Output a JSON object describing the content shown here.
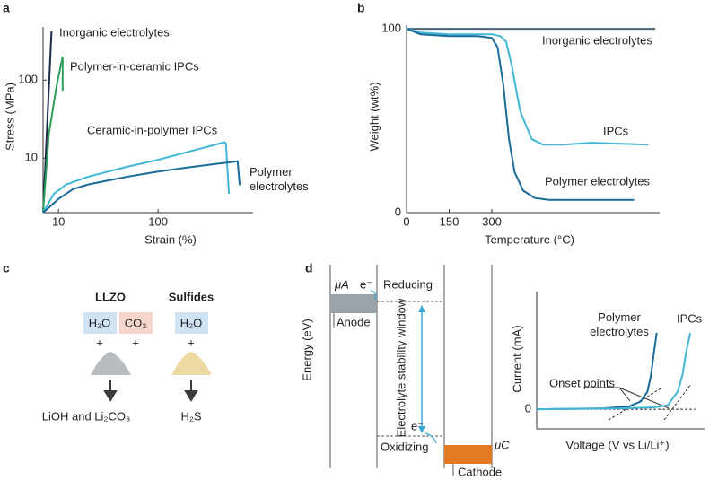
{
  "panel_labels": [
    "a",
    "b",
    "c",
    "d"
  ],
  "chart_data": [
    {
      "type": "line",
      "xlabel": "Strain (%)",
      "ylabel": "Stress (MPa)",
      "log_scale": true,
      "xlim": [
        7,
        900
      ],
      "ylim": [
        2,
        480
      ],
      "xticks": [
        10,
        100
      ],
      "yticks": [
        10,
        100
      ],
      "series": [
        {
          "name": "Inorganic electrolytes",
          "color": "#1c2b4c",
          "x": [
            7,
            8.5
          ],
          "values": [
            2,
            420
          ]
        },
        {
          "name": "Polymer-in-ceramic IPCs",
          "color": "#2e9e5b",
          "x": [
            7,
            8,
            9.5,
            10.5,
            11,
            11
          ],
          "values": [
            2,
            20,
            80,
            150,
            200,
            73
          ]
        },
        {
          "name": "Ceramic-in-polymer IPCs",
          "color": "#41b6d6",
          "x": [
            7,
            9,
            12,
            20,
            50,
            100,
            200,
            465,
            480,
            515
          ],
          "values": [
            2,
            3.5,
            4.6,
            5.8,
            7.8,
            9.5,
            12,
            16,
            15.5,
            3.5
          ]
        },
        {
          "name": "Polymer electrolytes",
          "color": "#1a6a9a",
          "x": [
            7,
            10,
            14,
            20,
            50,
            100,
            200,
            400,
            630,
            660
          ],
          "values": [
            2,
            3,
            4,
            4.6,
            5.8,
            6.7,
            7.6,
            8.5,
            9.1,
            4.5
          ]
        }
      ]
    },
    {
      "type": "line",
      "xlabel": "Temperature (°C)",
      "ylabel": "Weight (wt%)",
      "xlim": [
        0,
        890
      ],
      "ylim": [
        0,
        102
      ],
      "xticks": [
        0,
        150,
        300
      ],
      "yticks": [
        0,
        100
      ],
      "series": [
        {
          "name": "Inorganic electrolytes",
          "color": "#4a6074",
          "x": [
            0,
            875
          ],
          "values": [
            100,
            100
          ]
        },
        {
          "name": "IPCs",
          "color": "#41b6d6",
          "x": [
            0,
            50,
            150,
            300,
            330,
            350,
            370,
            400,
            440,
            480,
            550,
            650,
            850
          ],
          "values": [
            100,
            98,
            97,
            97,
            96,
            93,
            80,
            55,
            40,
            37,
            37,
            38,
            37
          ]
        },
        {
          "name": "Polymer electrolytes",
          "color": "#1a6a9a",
          "x": [
            0,
            50,
            150,
            250,
            300,
            320,
            340,
            360,
            380,
            410,
            450,
            500,
            600,
            800
          ],
          "values": [
            100,
            97,
            96,
            96,
            95,
            90,
            70,
            40,
            22,
            12,
            8,
            7,
            7,
            7
          ]
        }
      ]
    },
    {
      "type": "line",
      "xlabel": "Voltage (V vs Li/Li⁺)",
      "ylabel": "Current (mA)",
      "annotation": "Onset points",
      "xlim": [
        0,
        100
      ],
      "ylim": [
        -1,
        6
      ],
      "yticks": [
        0
      ],
      "series": [
        {
          "name": "Polymer electrolytes",
          "color": "#1a6a9a",
          "x": [
            0,
            40,
            55,
            62,
            66,
            68,
            70,
            71.5
          ],
          "values": [
            0,
            0.05,
            0.15,
            0.4,
            0.9,
            1.7,
            3,
            3.9
          ]
        },
        {
          "name": "IPCs",
          "color": "#41b6d6",
          "x": [
            0,
            50,
            70,
            78,
            84,
            87,
            89,
            91.5
          ],
          "values": [
            0,
            0.05,
            0.1,
            0.2,
            0.9,
            1.8,
            2.9,
            3.9
          ]
        }
      ]
    }
  ],
  "panel_c": {
    "llzo": {
      "title": "LLZO",
      "reagents": [
        "H₂O",
        "CO₂"
      ],
      "product": "LiOH and Li₂CO₃"
    },
    "sulfides": {
      "title": "Sulfides",
      "reagents": [
        "H₂O"
      ],
      "product": "H₂S"
    },
    "plus": "+"
  },
  "panel_d": {
    "mu_a": "μA",
    "electron": "e⁻",
    "reducing": "Reducing",
    "anode": "Anode",
    "energy": "Energy (eV)",
    "window": "Electrolyte stability window",
    "oxidizing": "Oxidizing",
    "mu_c": "μC",
    "cathode": "Cathode"
  }
}
